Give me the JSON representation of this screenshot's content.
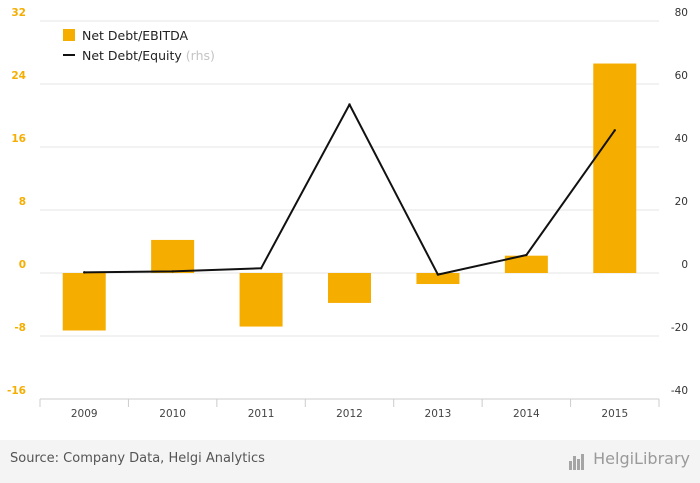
{
  "chart_data": {
    "type": "bar",
    "categories": [
      "2009",
      "2010",
      "2011",
      "2012",
      "2013",
      "2014",
      "2015"
    ],
    "series": [
      {
        "name": "Net Debt/EBITDA",
        "type": "bar",
        "axis": "left",
        "color": "#f5ad00",
        "values": [
          -7.3,
          4.2,
          -6.8,
          -3.8,
          -1.4,
          2.2,
          26.6
        ]
      },
      {
        "name": "Net Debt/Equity",
        "type": "line",
        "axis": "right",
        "color": "#111111",
        "values": [
          0.2,
          0.5,
          1.5,
          53.5,
          -0.5,
          5.7,
          45.3
        ]
      }
    ],
    "ylim": [
      -16,
      32
    ],
    "yticks": [
      "-16",
      "-8",
      "0",
      "8",
      "16",
      "24",
      "32"
    ],
    "y2lim": [
      -40,
      80
    ],
    "y2ticks": [
      "-40",
      "-20",
      "0",
      "20",
      "40",
      "60",
      "80"
    ],
    "legend_placement": "top-left",
    "legend": [
      {
        "label": "Net Debt/EBITDA",
        "marker": "bar"
      },
      {
        "label": "Net Debt/Equity",
        "marker": "line",
        "suffix": "(rhs)"
      }
    ],
    "grid": true,
    "colors": {
      "bar": "#f5ad00",
      "line": "#111111",
      "left_axis_text": "#f5ad00",
      "right_axis_text": "#333333",
      "grid": "#e6e6e6"
    }
  },
  "footer": {
    "source": "Source: Company Data, Helgi Analytics",
    "brand": "HelgiLibrary"
  }
}
